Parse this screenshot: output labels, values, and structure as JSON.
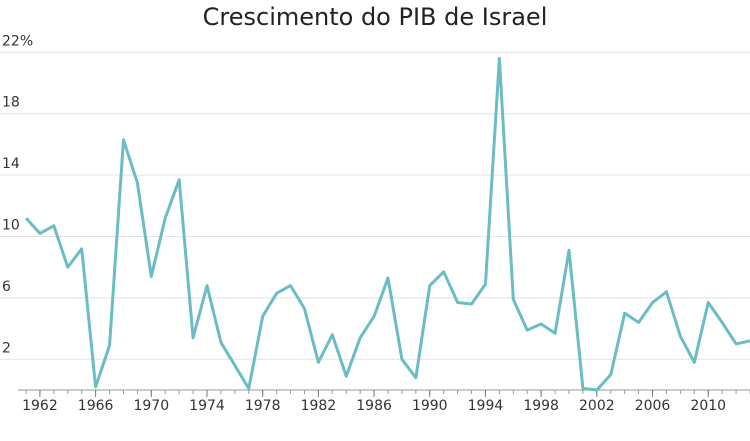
{
  "chart_data": {
    "type": "line",
    "title": "Crescimento do PIB de Israel",
    "x": [
      1961,
      1962,
      1963,
      1964,
      1965,
      1966,
      1967,
      1968,
      1969,
      1970,
      1971,
      1972,
      1973,
      1974,
      1975,
      1976,
      1977,
      1978,
      1979,
      1980,
      1981,
      1982,
      1983,
      1984,
      1985,
      1986,
      1987,
      1988,
      1989,
      1990,
      1991,
      1992,
      1993,
      1994,
      1995,
      1996,
      1997,
      1998,
      1999,
      2000,
      2001,
      2002,
      2003,
      2004,
      2005,
      2006,
      2007,
      2008,
      2009,
      2010,
      2011,
      2012,
      2013
    ],
    "series": [
      {
        "name": "PIB",
        "color": "#6bbcc4",
        "values": [
          11.2,
          10.2,
          10.7,
          8.0,
          9.2,
          0.2,
          2.9,
          16.3,
          13.5,
          7.4,
          11.2,
          13.7,
          3.4,
          6.8,
          3.1,
          1.6,
          0.1,
          4.8,
          6.3,
          6.8,
          5.3,
          1.8,
          3.6,
          0.9,
          3.4,
          4.8,
          7.3,
          2.0,
          0.8,
          6.8,
          7.7,
          5.7,
          5.6,
          6.9,
          21.6,
          5.9,
          3.9,
          4.3,
          3.7,
          9.1,
          0.1,
          0.0,
          1.0,
          5.0,
          4.4,
          5.7,
          6.4,
          3.5,
          1.8,
          5.7,
          4.4,
          3.0,
          3.2
        ]
      }
    ],
    "xlim": [
      1961,
      2013
    ],
    "xticks": [
      1962,
      1966,
      1970,
      1974,
      1978,
      1982,
      1986,
      1990,
      1994,
      1998,
      2002,
      2006,
      2010
    ],
    "ylim": [
      0,
      22
    ],
    "yticks": [
      {
        "value": 22,
        "label": "22%"
      },
      18,
      14,
      10,
      6,
      2
    ],
    "grid": true
  }
}
